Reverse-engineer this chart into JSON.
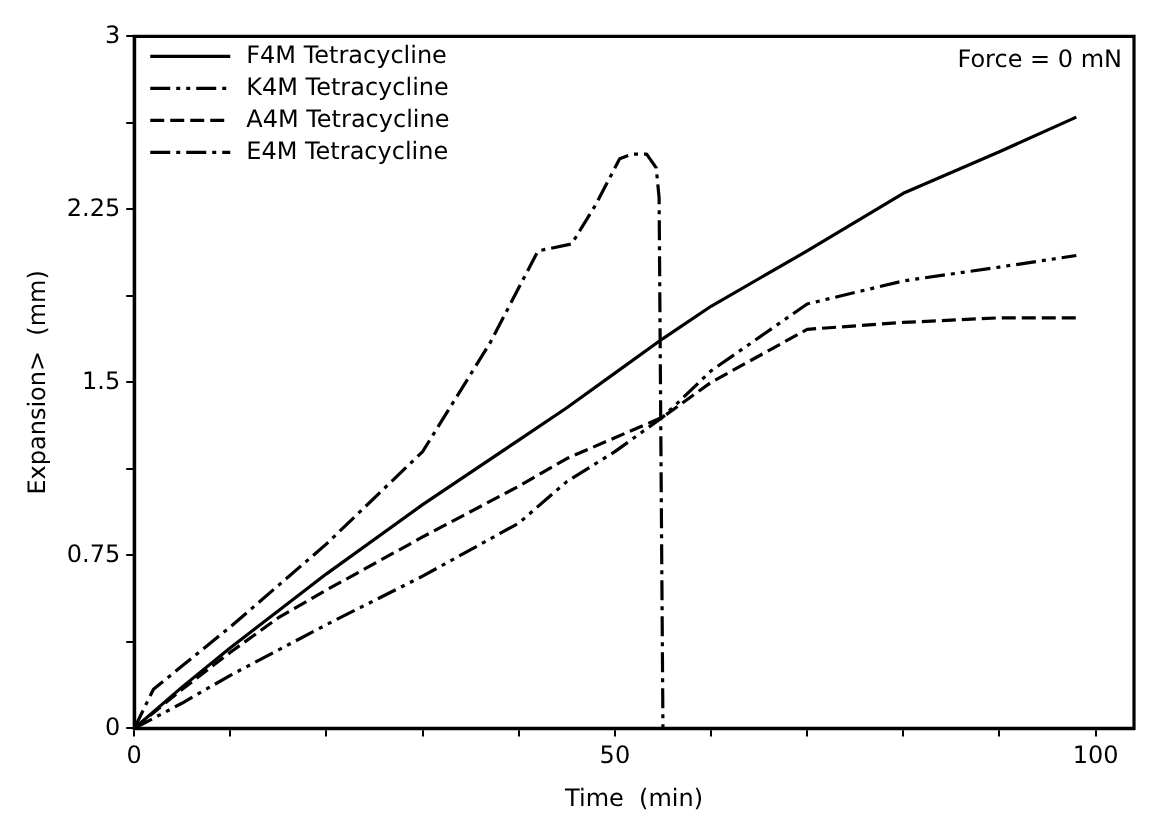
{
  "chart_data": {
    "type": "line",
    "xlabel": "Time  (min)",
    "ylabel": "Expansion>  (mm)",
    "annotations": [
      "Force = 0 mN"
    ],
    "legend": "top left",
    "grid": false,
    "marker": "none",
    "xlim": [
      0,
      104
    ],
    "ylim": [
      0,
      3
    ],
    "xticks": [
      0,
      {
        "value": 10,
        "label": null
      },
      {
        "value": 20,
        "label": null
      },
      {
        "value": 30,
        "label": null
      },
      {
        "value": 40,
        "label": null
      },
      50,
      {
        "value": 60,
        "label": null
      },
      {
        "value": 70,
        "label": null
      },
      {
        "value": 80,
        "label": null
      },
      {
        "value": 90,
        "label": null
      },
      100
    ],
    "yticks": [
      0,
      {
        "value": 0.375,
        "label": null
      },
      0.75,
      {
        "value": 1.125,
        "label": null
      },
      1.5,
      {
        "value": 1.875,
        "label": null
      },
      2.25,
      {
        "value": 2.625,
        "label": null
      },
      3
    ],
    "series": [
      {
        "name": "F4M Tetracycline",
        "color": "#000000",
        "line_style": "solid",
        "x": [
          0,
          5,
          10,
          15,
          20,
          30,
          40,
          45,
          50,
          55,
          60,
          70,
          80,
          90,
          98
        ],
        "values": [
          0,
          0.18,
          0.35,
          0.51,
          0.67,
          0.97,
          1.25,
          1.39,
          1.54,
          1.69,
          1.83,
          2.07,
          2.32,
          2.5,
          2.65
        ]
      },
      {
        "name": "K4M Tetracycline",
        "color": "#000000",
        "line_style": "dashed",
        "x": [
          0,
          5,
          10,
          20,
          30,
          40,
          45,
          50,
          55,
          60,
          70,
          80,
          85,
          90,
          98
        ],
        "values": [
          0,
          0.11,
          0.23,
          0.45,
          0.66,
          0.89,
          1.07,
          1.2,
          1.35,
          1.55,
          1.84,
          1.94,
          1.97,
          2.0,
          2.05
        ]
      },
      {
        "name": "A4M Tetracycline",
        "color": "#000000",
        "line_style": "dashed",
        "x": [
          0,
          5,
          10,
          15,
          20,
          30,
          40,
          45,
          50,
          55,
          60,
          70,
          80,
          85,
          90,
          98
        ],
        "values": [
          0,
          0.17,
          0.33,
          0.48,
          0.6,
          0.83,
          1.05,
          1.17,
          1.26,
          1.35,
          1.5,
          1.73,
          1.76,
          1.77,
          1.78,
          1.78
        ]
      },
      {
        "name": "E4M Tetracycline",
        "color": "#000000",
        "line_style": "dashed",
        "x": [
          0,
          2,
          10,
          20,
          30,
          37,
          42,
          45.5,
          48,
          50.5,
          51.8,
          53.3,
          54.3,
          54.6,
          55
        ],
        "values": [
          0,
          0.17,
          0.44,
          0.8,
          1.2,
          1.67,
          2.07,
          2.1,
          2.27,
          2.47,
          2.49,
          2.49,
          2.43,
          2.3,
          0
        ]
      }
    ]
  }
}
